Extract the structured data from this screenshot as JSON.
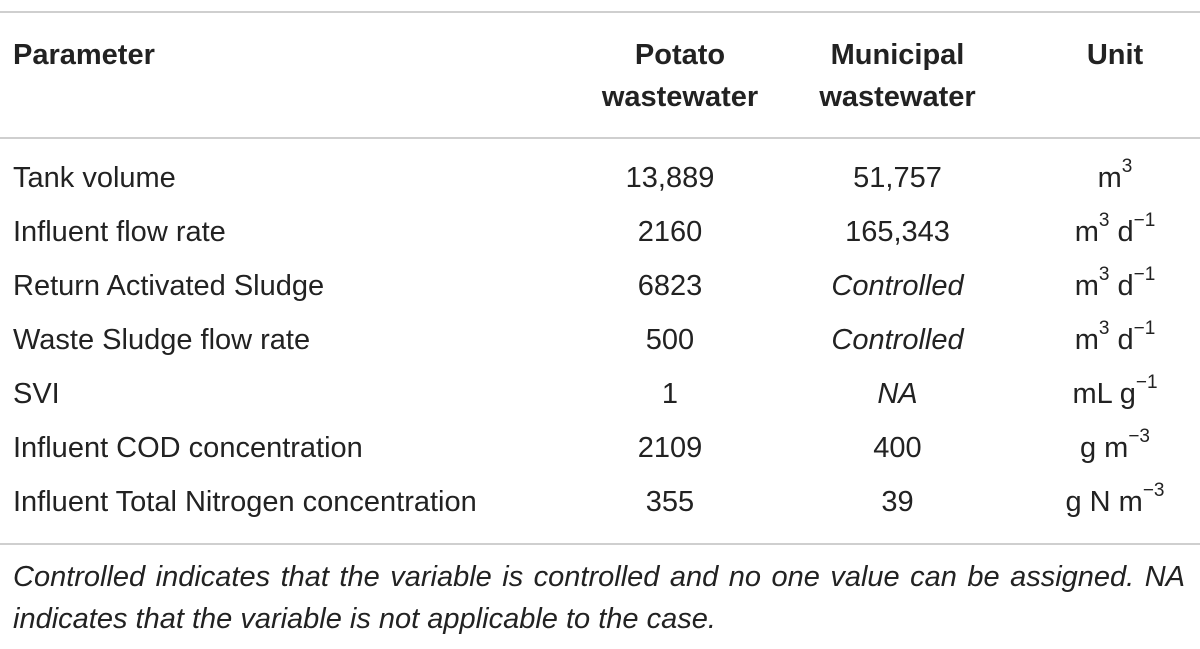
{
  "table": {
    "headers": {
      "parameter": "Parameter",
      "potato_line1": "Potato",
      "potato_line2": "wastewater",
      "municipal_line1": "Municipal",
      "municipal_line2": "wastewater",
      "unit": "Unit"
    },
    "rows": [
      {
        "parameter": "Tank volume",
        "potato": "13,889",
        "municipal": "51,757",
        "municipal_italic": false,
        "unit_base": "m",
        "unit_exp": "3",
        "unit_tail": "",
        "unit_tail_exp": ""
      },
      {
        "parameter": "Influent flow rate",
        "potato": "2160",
        "municipal": "165,343",
        "municipal_italic": false,
        "unit_base": "m",
        "unit_exp": "3",
        "unit_tail": " d",
        "unit_tail_exp": "−1"
      },
      {
        "parameter": "Return Activated Sludge",
        "potato": "6823",
        "municipal": "Controlled",
        "municipal_italic": true,
        "unit_base": "m",
        "unit_exp": "3",
        "unit_tail": " d",
        "unit_tail_exp": "−1"
      },
      {
        "parameter": "Waste Sludge flow rate",
        "potato": "500",
        "municipal": "Controlled",
        "municipal_italic": true,
        "unit_base": "m",
        "unit_exp": "3",
        "unit_tail": " d",
        "unit_tail_exp": "−1"
      },
      {
        "parameter": "SVI",
        "potato": "1",
        "municipal": "NA",
        "municipal_italic": true,
        "unit_base": "mL g",
        "unit_exp": "−1",
        "unit_tail": "",
        "unit_tail_exp": ""
      },
      {
        "parameter": "Influent COD concentration",
        "potato": "2109",
        "municipal": "400",
        "municipal_italic": false,
        "unit_base": "g m",
        "unit_exp": "−3",
        "unit_tail": "",
        "unit_tail_exp": ""
      },
      {
        "parameter": "Influent Total Nitrogen concentration",
        "potato": "355",
        "municipal": "39",
        "municipal_italic": false,
        "unit_base": "g N m",
        "unit_exp": "−3",
        "unit_tail": "",
        "unit_tail_exp": ""
      }
    ],
    "footnote": "Controlled indicates that the variable is controlled and no one value can be assigned. NA indicates that the variable is not applicable to the case."
  }
}
